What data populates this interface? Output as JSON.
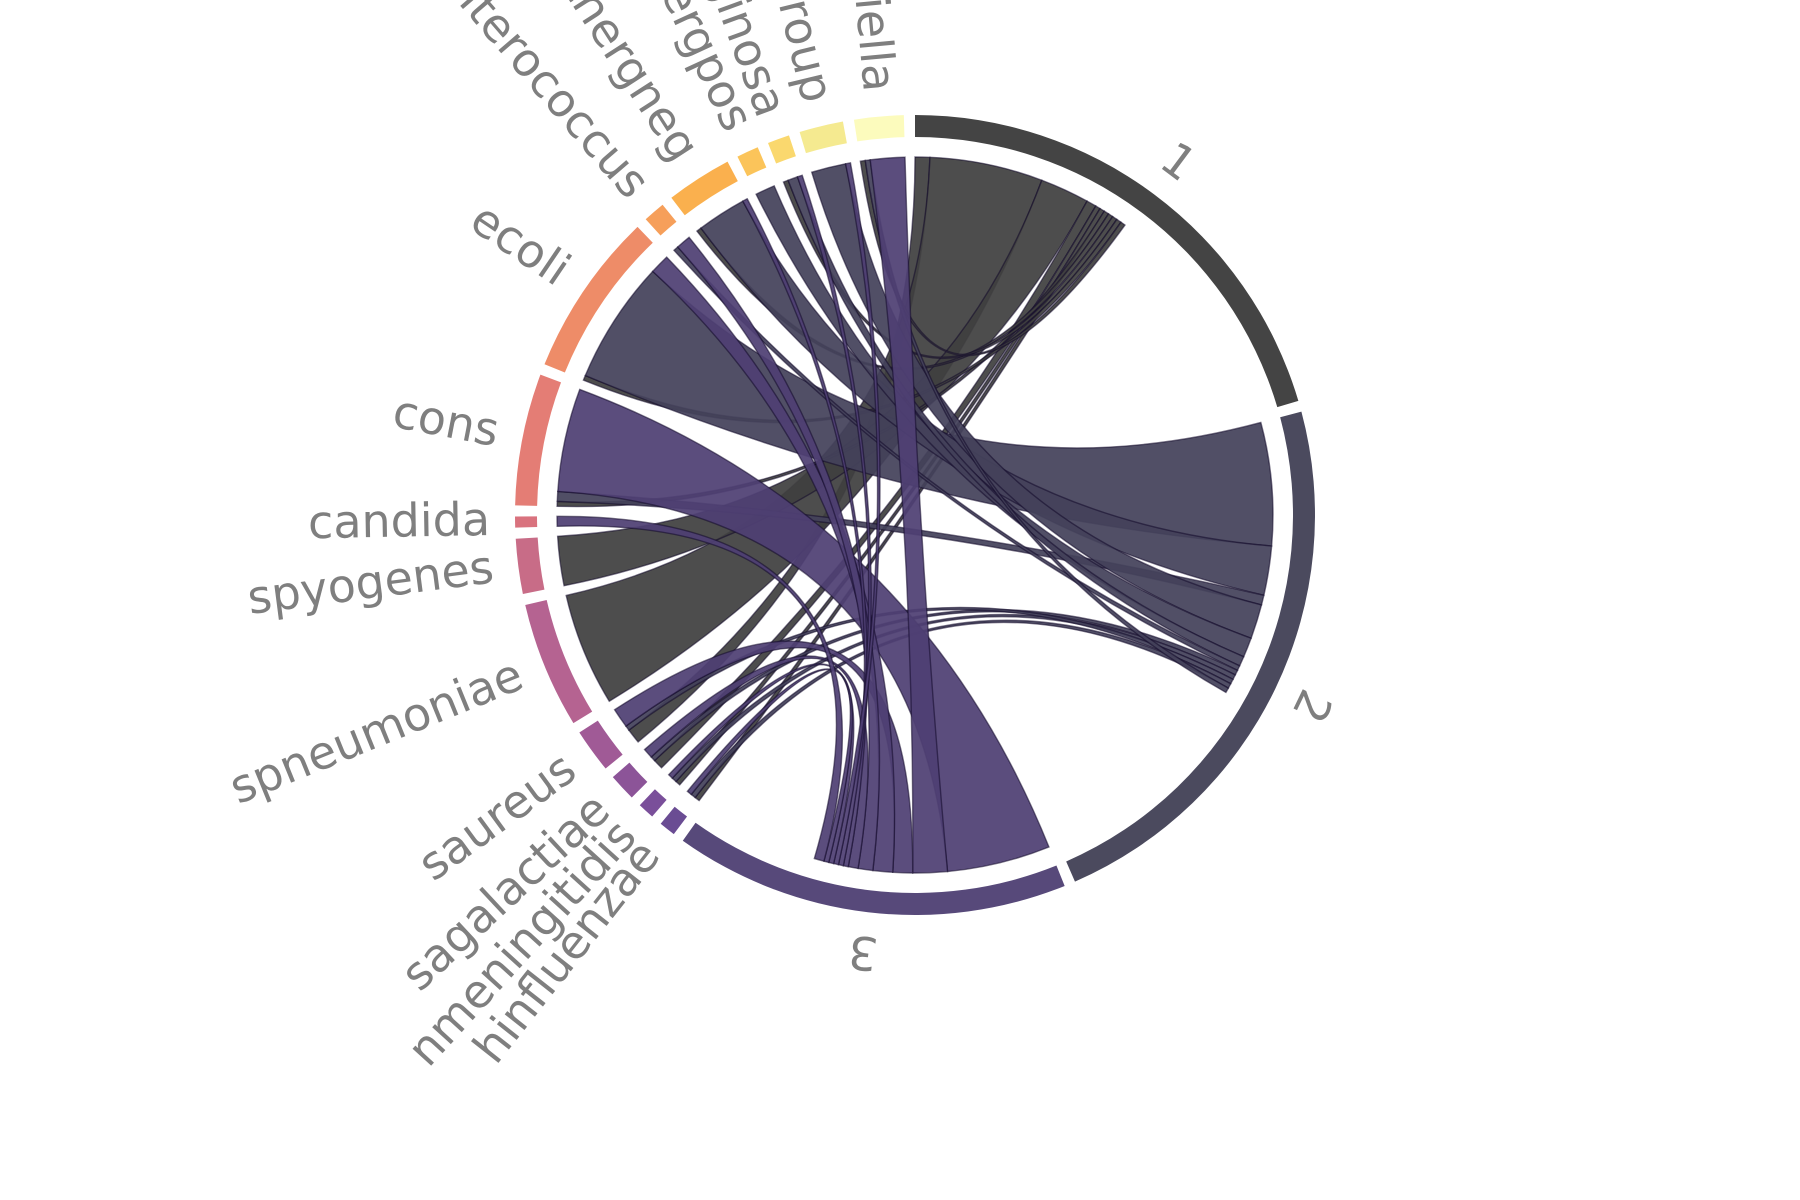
{
  "chart_data": {
    "type": "chord",
    "title": "",
    "groups": [
      {
        "name": "1",
        "side": "cluster",
        "value": 92,
        "color": "#444444"
      },
      {
        "name": "2",
        "side": "cluster",
        "value": 102,
        "color": "#4b4a5e"
      },
      {
        "name": "3",
        "side": "cluster",
        "value": 72,
        "color": "#57497a"
      },
      {
        "name": "hinfluenzae",
        "side": "organism",
        "value": 3,
        "color": "#6a4c93"
      },
      {
        "name": "nmeningitidis",
        "side": "organism",
        "value": 3,
        "color": "#7a4f9a"
      },
      {
        "name": "sagalactiae",
        "side": "organism",
        "value": 5,
        "color": "#8c5498"
      },
      {
        "name": "saureus",
        "side": "organism",
        "value": 8,
        "color": "#a05a96"
      },
      {
        "name": "spneumoniae",
        "side": "organism",
        "value": 23,
        "color": "#b56391"
      },
      {
        "name": "spyogenes",
        "side": "organism",
        "value": 10,
        "color": "#c86c87"
      },
      {
        "name": "candida",
        "side": "organism",
        "value": 2,
        "color": "#d9727e"
      },
      {
        "name": "cons",
        "side": "organism",
        "value": 24,
        "color": "#e47d75"
      },
      {
        "name": "ecoli",
        "side": "organism",
        "value": 30,
        "color": "#ee8c68"
      },
      {
        "name": "enterococcus",
        "side": "organism",
        "value": 4,
        "color": "#f69f5a"
      },
      {
        "name": "othergneg",
        "side": "organism",
        "value": 12,
        "color": "#fab04e"
      },
      {
        "name": "othergpos",
        "side": "organism",
        "value": 4,
        "color": "#fbc45a"
      },
      {
        "name": "paeruginosa",
        "side": "organism",
        "value": 4,
        "color": "#fad86e"
      },
      {
        "name": "viridansgroup",
        "side": "organism",
        "value": 8,
        "color": "#f5ea90"
      },
      {
        "name": "klebsiella",
        "side": "organism",
        "value": 9,
        "color": "#fcfbbd"
      }
    ],
    "links": [
      {
        "source": "1",
        "target": "saureus",
        "value": 3
      },
      {
        "source": "1",
        "target": "spneumoniae",
        "value": 23
      },
      {
        "source": "1",
        "target": "spyogenes",
        "value": 10
      },
      {
        "source": "1",
        "target": "sagalactiae",
        "value": 2
      },
      {
        "source": "1",
        "target": "nmeningitidis",
        "value": 1
      },
      {
        "source": "1",
        "target": "hinfluenzae",
        "value": 1
      },
      {
        "source": "1",
        "target": "cons",
        "value": 1
      },
      {
        "source": "1",
        "target": "othergneg",
        "value": 1
      },
      {
        "source": "1",
        "target": "paeruginosa",
        "value": 1
      },
      {
        "source": "1",
        "target": "ecoli",
        "value": 1
      },
      {
        "source": "1",
        "target": "klebsiella",
        "value": 1
      },
      {
        "source": "2",
        "target": "ecoli",
        "value": 25
      },
      {
        "source": "2",
        "target": "othergneg",
        "value": 10
      },
      {
        "source": "2",
        "target": "cons",
        "value": 2
      },
      {
        "source": "2",
        "target": "viridansgroup",
        "value": 7
      },
      {
        "source": "2",
        "target": "othergpos",
        "value": 4
      },
      {
        "source": "2",
        "target": "paeruginosa",
        "value": 2
      },
      {
        "source": "2",
        "target": "enterococcus",
        "value": 1
      },
      {
        "source": "2",
        "target": "sagalactiae",
        "value": 1
      },
      {
        "source": "2",
        "target": "nmeningitidis",
        "value": 1
      },
      {
        "source": "2",
        "target": "saureus",
        "value": 1
      },
      {
        "source": "2",
        "target": "hinfluenzae",
        "value": 1
      },
      {
        "source": "2",
        "target": "klebsiella",
        "value": 1
      },
      {
        "source": "3",
        "target": "cons",
        "value": 21
      },
      {
        "source": "3",
        "target": "klebsiella",
        "value": 7
      },
      {
        "source": "3",
        "target": "saureus",
        "value": 4
      },
      {
        "source": "3",
        "target": "ecoli",
        "value": 4
      },
      {
        "source": "3",
        "target": "enterococcus",
        "value": 3
      },
      {
        "source": "3",
        "target": "sagalactiae",
        "value": 2
      },
      {
        "source": "3",
        "target": "othergneg",
        "value": 1
      },
      {
        "source": "3",
        "target": "paeruginosa",
        "value": 1
      },
      {
        "source": "3",
        "target": "viridansgroup",
        "value": 1
      },
      {
        "source": "3",
        "target": "nmeningitidis",
        "value": 1
      },
      {
        "source": "3",
        "target": "hinfluenzae",
        "value": 1
      },
      {
        "source": "3",
        "target": "candida",
        "value": 2
      }
    ]
  }
}
